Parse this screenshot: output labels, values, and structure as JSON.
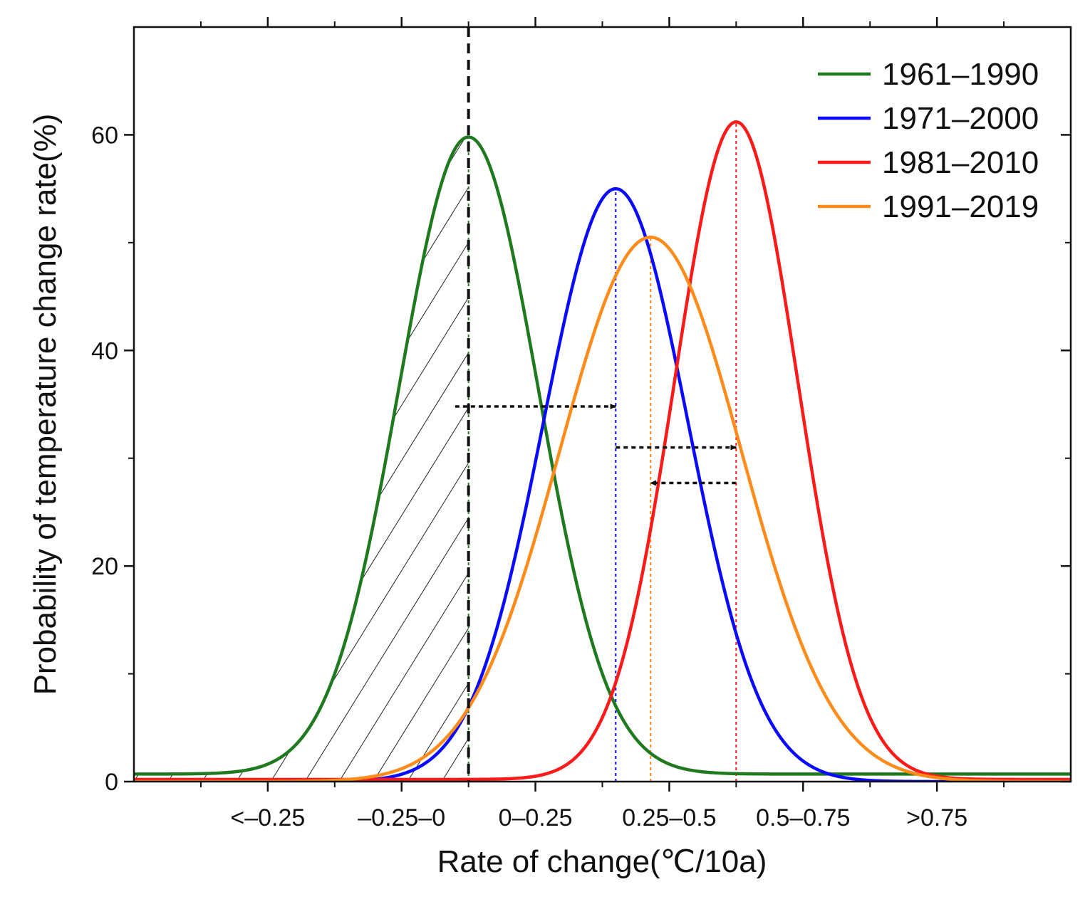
{
  "chart_data": {
    "type": "line",
    "xlabel": "Rate of change(℃/10a)",
    "ylabel": "Probability of temperature change rate(%)",
    "xlim": [
      0,
      7
    ],
    "ylim": [
      0,
      70
    ],
    "x_tick_labels": [
      {
        "x": 1.0,
        "label": "<–0.25"
      },
      {
        "x": 2.0,
        "label": "–0.25–0"
      },
      {
        "x": 3.0,
        "label": "0–0.25"
      },
      {
        "x": 4.0,
        "label": "0.25–0.5"
      },
      {
        "x": 5.0,
        "label": "0.5–0.75"
      },
      {
        "x": 6.0,
        "label": ">0.75"
      }
    ],
    "y_ticks": [
      0,
      20,
      40,
      60
    ],
    "y_minor_ticks": [
      10,
      30,
      50
    ],
    "legend_position": "top-right",
    "series": [
      {
        "name": "1961–1990",
        "color": "#1f7a1f",
        "peak_x": 2.5,
        "peak_y": 59.8,
        "sigma": 0.52,
        "baseline": 0.7
      },
      {
        "name": "1971–2000",
        "color": "#0a0aff",
        "peak_x": 3.6,
        "peak_y": 55.0,
        "sigma": 0.54,
        "baseline": 0.0
      },
      {
        "name": "1981–2010",
        "color": "#ff1a1a",
        "peak_x": 4.5,
        "peak_y": 61.2,
        "sigma": 0.46,
        "baseline": 0.2
      },
      {
        "name": "1991–2019",
        "color": "#ff8c1a",
        "peak_x": 3.86,
        "peak_y": 50.5,
        "sigma": 0.68,
        "baseline": 0.0
      }
    ],
    "reference_line_x": 2.5,
    "hatched_region": {
      "from_x": 0.0,
      "to_x": 2.5
    },
    "arrows": [
      {
        "from_x": 2.4,
        "to_x": 3.6,
        "y": 34.8
      },
      {
        "from_x": 3.6,
        "to_x": 4.5,
        "y": 31.0
      },
      {
        "from_x": 4.5,
        "to_x": 3.86,
        "y": 27.7
      }
    ]
  }
}
